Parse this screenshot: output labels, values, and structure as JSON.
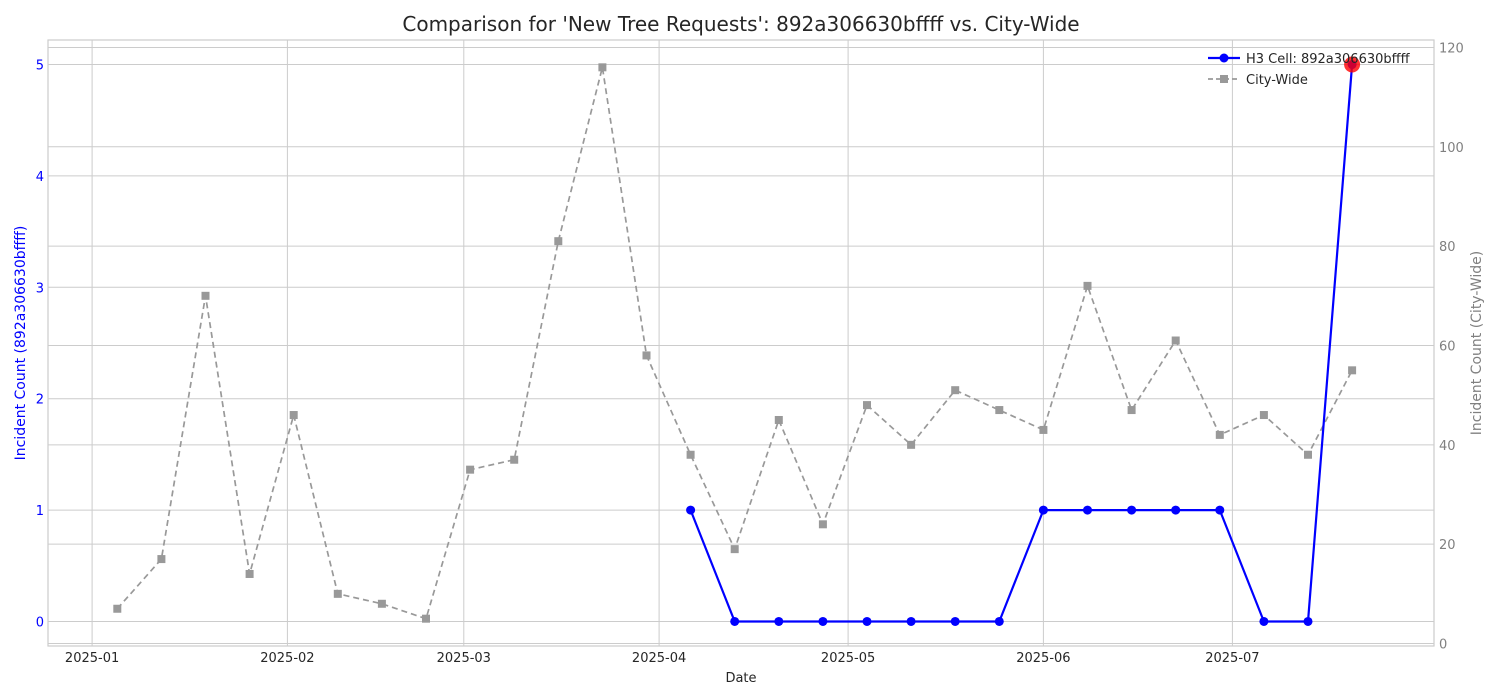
{
  "chart_data": {
    "type": "line",
    "title": "Comparison for 'New Tree Requests': 892a306630bffff vs. City-Wide",
    "xlabel": "Date",
    "ylabel_left": "Incident Count (892a306630bffff)",
    "ylabel_right": "Incident Count (City-Wide)",
    "x_ticks": [
      "2025-01",
      "2025-02",
      "2025-03",
      "2025-04",
      "2025-05",
      "2025-06",
      "2025-07"
    ],
    "x_tick_dates": [
      "2025-01-01",
      "2025-02-01",
      "2025-03-01",
      "2025-04-01",
      "2025-05-01",
      "2025-06-01",
      "2025-07-01"
    ],
    "xlim": [
      "2024-12-25",
      "2025-08-02"
    ],
    "y_left_ticks": [
      0,
      1,
      2,
      3,
      4,
      5
    ],
    "y_left_lim": [
      -0.22,
      5.22
    ],
    "y_right_ticks": [
      0,
      20,
      40,
      60,
      80,
      100,
      120
    ],
    "y_right_lim": [
      -0.5,
      121.5
    ],
    "grid": true,
    "legend_position": "top-right",
    "series": [
      {
        "name": "H3 Cell: 892a306630bffff",
        "axis": "left",
        "color": "#0000ff",
        "style": "solid",
        "marker": "circle",
        "x": [
          "2025-04-06",
          "2025-04-13",
          "2025-04-20",
          "2025-04-27",
          "2025-05-04",
          "2025-05-11",
          "2025-05-18",
          "2025-05-25",
          "2025-06-01",
          "2025-06-08",
          "2025-06-15",
          "2025-06-22",
          "2025-06-29",
          "2025-07-06",
          "2025-07-13",
          "2025-07-20"
        ],
        "values": [
          1,
          0,
          0,
          0,
          0,
          0,
          0,
          0,
          1,
          1,
          1,
          1,
          1,
          0,
          0,
          5
        ]
      },
      {
        "name": "City-Wide",
        "axis": "right",
        "color": "#999999",
        "style": "dashed",
        "marker": "square",
        "x": [
          "2025-01-05",
          "2025-01-12",
          "2025-01-19",
          "2025-01-26",
          "2025-02-02",
          "2025-02-09",
          "2025-02-16",
          "2025-02-23",
          "2025-03-02",
          "2025-03-09",
          "2025-03-16",
          "2025-03-23",
          "2025-03-30",
          "2025-04-06",
          "2025-04-13",
          "2025-04-20",
          "2025-04-27",
          "2025-05-04",
          "2025-05-11",
          "2025-05-18",
          "2025-05-25",
          "2025-06-01",
          "2025-06-08",
          "2025-06-15",
          "2025-06-22",
          "2025-06-29",
          "2025-07-06",
          "2025-07-13",
          "2025-07-20"
        ],
        "values": [
          7,
          17,
          70,
          14,
          46,
          10,
          8,
          5,
          35,
          37,
          81,
          116,
          58,
          38,
          19,
          45,
          24,
          48,
          40,
          51,
          47,
          43,
          72,
          47,
          61,
          42,
          46,
          38,
          55
        ]
      }
    ],
    "highlight_point": {
      "series": "H3 Cell: 892a306630bffff",
      "x": "2025-07-20",
      "value": 5,
      "color": "#ff0000"
    }
  }
}
